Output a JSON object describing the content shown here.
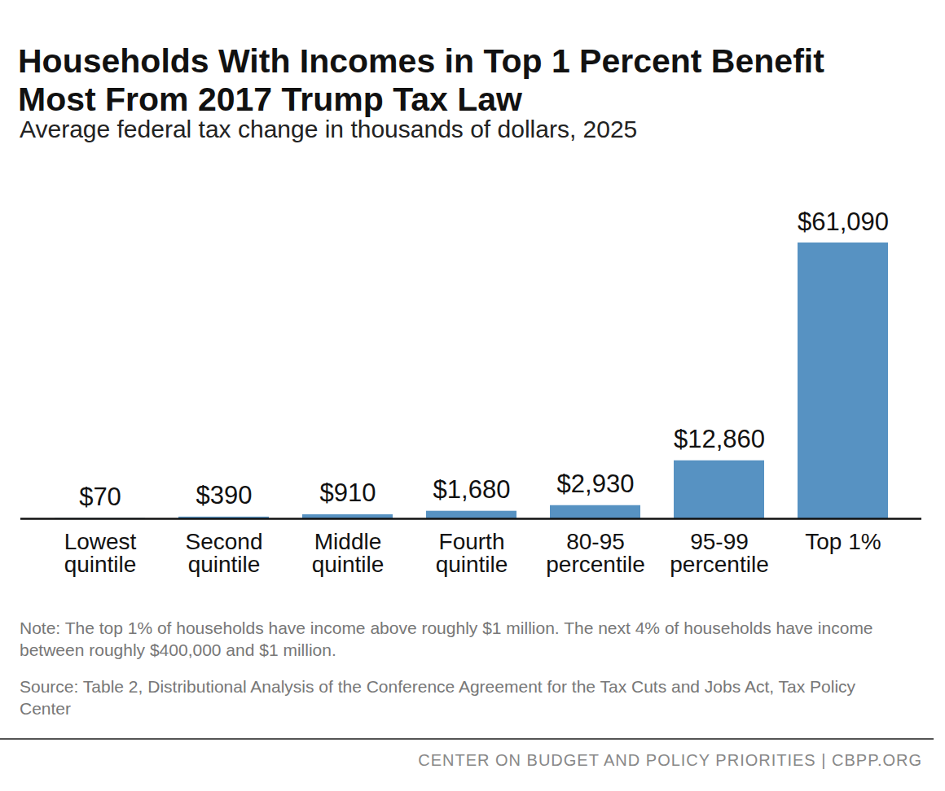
{
  "chart_data": {
    "type": "bar",
    "title": "Households With Incomes in Top 1 Percent Benefit Most From 2017 Trump Tax Law",
    "subtitle": "Average federal tax change in thousands of dollars, 2025",
    "categories": [
      "Lowest\nquintile",
      "Second\nquintile",
      "Middle\nquintile",
      "Fourth\nquintile",
      "80-95\npercentile",
      "95-99\npercentile",
      "Top 1%"
    ],
    "values": [
      70,
      390,
      910,
      1680,
      2930,
      12860,
      61090
    ],
    "value_labels": [
      "$70",
      "$390",
      "$910",
      "$1,680",
      "$2,930",
      "$12,860",
      "$61,090"
    ],
    "color": "#5792c2",
    "ylim": [
      0,
      61090
    ],
    "data_labels": true,
    "tick_labels": "x",
    "grid": false,
    "note": "Note: The top 1% of households have income above roughly $1 million. The next 4% of households have income between roughly $400,000 and $1 million.",
    "source": "Source: Table 2, Distributional Analysis of the Conference Agreement for the Tax Cuts and Jobs Act, Tax Policy Center",
    "credit": "CENTER ON BUDGET AND POLICY PRIORITIES | CBPP.ORG"
  }
}
